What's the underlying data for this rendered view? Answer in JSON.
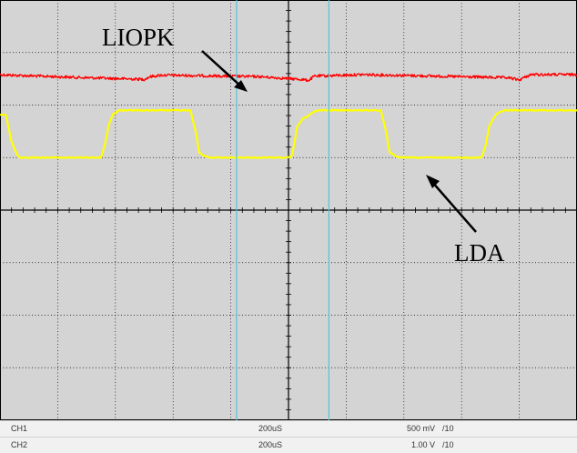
{
  "chart_data": {
    "type": "line",
    "title": "",
    "xlabel": "",
    "ylabel": "",
    "grid": true,
    "grid_divisions": {
      "x": 10,
      "y": 8
    },
    "xlim": [
      0,
      10
    ],
    "ylim": [
      -4,
      4
    ],
    "background_color": "#d4d4d4",
    "grid_color": "#000000",
    "cursor_color": "#4fc6d6",
    "cursors_x": [
      4.1,
      5.7
    ],
    "series": [
      {
        "channel": "CH1",
        "color": "#ff0000",
        "x": [
          0,
          0.15,
          1.5,
          2.5,
          2.6,
          2.8,
          4.5,
          5.2,
          5.35,
          5.45,
          6.3,
          8.8,
          9.0,
          9.2,
          10
        ],
        "y": [
          2.58,
          2.57,
          2.52,
          2.49,
          2.54,
          2.57,
          2.54,
          2.49,
          2.47,
          2.55,
          2.58,
          2.52,
          2.48,
          2.58,
          2.58
        ]
      },
      {
        "channel": "CH2",
        "color": "#ffff00",
        "x": [
          0,
          0.1,
          0.2,
          0.3,
          0.35,
          1.75,
          1.82,
          1.88,
          1.95,
          2.0,
          2.05,
          2.15,
          3.3,
          3.4,
          3.45,
          3.55,
          3.65,
          5.05,
          5.1,
          5.15,
          5.25,
          5.35,
          5.45,
          5.55,
          6.6,
          6.7,
          6.75,
          6.85,
          6.95,
          8.35,
          8.42,
          8.48,
          8.55,
          8.6,
          8.65,
          8.75,
          10
        ],
        "y": [
          1.82,
          1.82,
          1.3,
          1.05,
          1.0,
          1.0,
          1.25,
          1.6,
          1.82,
          1.85,
          1.9,
          1.9,
          1.9,
          1.45,
          1.1,
          1.03,
          1.0,
          1.0,
          1.25,
          1.6,
          1.74,
          1.8,
          1.88,
          1.9,
          1.9,
          1.45,
          1.1,
          1.03,
          1.0,
          1.0,
          1.25,
          1.6,
          1.74,
          1.82,
          1.86,
          1.9,
          1.9
        ]
      }
    ],
    "annotations": [
      {
        "text": "LIOPK",
        "target_series": "CH1"
      },
      {
        "text": "LDA",
        "target_series": "CH2"
      }
    ]
  },
  "status_bar": [
    {
      "channel": "CH1",
      "timebase": "200uS",
      "volts_div": "500 mV",
      "probe": "/10"
    },
    {
      "channel": "CH2",
      "timebase": "200uS",
      "volts_div": "1.00 V",
      "probe": "/10"
    }
  ]
}
